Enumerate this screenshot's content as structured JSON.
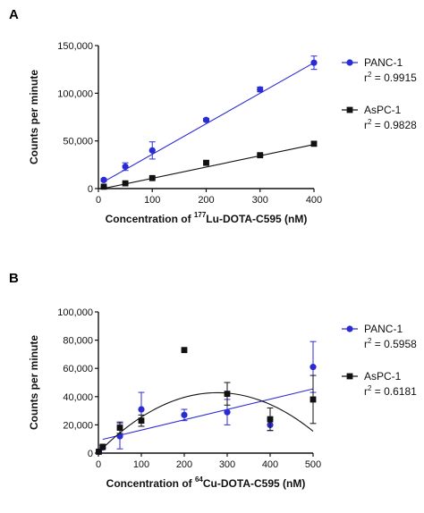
{
  "colors": {
    "panc": "#2b2bd6",
    "aspc": "#111111",
    "axis": "#111111"
  },
  "chart_data": [
    {
      "panel": "A",
      "type": "scatter",
      "xlabel": {
        "prefix": "Concentration of ",
        "sup": "177",
        "suffix": "Lu-DOTA-C595 (nM)"
      },
      "ylabel": "Counts per minute",
      "xlim": [
        0,
        400
      ],
      "ylim": [
        0,
        150000
      ],
      "xticks": [
        0,
        100,
        200,
        300,
        400
      ],
      "xtick_labels": [
        "0",
        "100",
        "200",
        "300",
        "400"
      ],
      "yticks": [
        0,
        50000,
        100000,
        150000
      ],
      "ytick_labels": [
        "0",
        "50,000",
        "100,000",
        "150,000"
      ],
      "fit": "linear",
      "series": [
        {
          "name": "PANC-1",
          "r2_label": "r",
          "r2_value": " = 0.9915",
          "color": "#2b2bd6",
          "marker": "circle",
          "x": [
            10,
            50,
            100,
            200,
            300,
            400
          ],
          "y": [
            9000,
            23000,
            40000,
            72000,
            104000,
            132000
          ],
          "err": [
            1500,
            4000,
            9000,
            1500,
            2500,
            7000
          ],
          "fit_coef": [
            4000,
            320
          ]
        },
        {
          "name": "AsPC-1",
          "r2_label": "r",
          "r2_value": " = 0.9828",
          "color": "#111111",
          "marker": "square",
          "x": [
            10,
            50,
            100,
            200,
            300,
            400
          ],
          "y": [
            2000,
            5500,
            11000,
            27000,
            35000,
            47000
          ],
          "err": [
            500,
            800,
            1000,
            1500,
            1200,
            2000
          ],
          "fit_coef": [
            -1000,
            118
          ]
        }
      ],
      "legend_position": "right"
    },
    {
      "panel": "B",
      "type": "scatter",
      "xlabel": {
        "prefix": "Concentration of ",
        "sup": "64",
        "suffix": "Cu-DOTA-C595 (nM)"
      },
      "ylabel": "Counts per minute",
      "xlim": [
        0,
        500
      ],
      "ylim": [
        0,
        100000
      ],
      "xticks": [
        0,
        100,
        200,
        300,
        400,
        500
      ],
      "xtick_labels": [
        "0",
        "100",
        "200",
        "300",
        "400",
        "500"
      ],
      "yticks": [
        0,
        20000,
        40000,
        60000,
        80000,
        100000
      ],
      "ytick_labels": [
        "0",
        "20,000",
        "40,000",
        "60,000",
        "80,000",
        "100,000"
      ],
      "series": [
        {
          "name": "PANC-1",
          "r2_label": "r",
          "r2_value": " = 0.5958",
          "color": "#2b2bd6",
          "marker": "circle",
          "fit": "linear",
          "x": [
            1,
            10,
            50,
            100,
            200,
            300,
            400,
            500
          ],
          "y": [
            1000,
            4000,
            12000,
            31000,
            27000,
            29000,
            20000,
            61000
          ],
          "err": [
            500,
            1500,
            9000,
            12000,
            4000,
            9000,
            4000,
            18000
          ],
          "fit_coef": [
            9000,
            73
          ]
        },
        {
          "name": "AsPC-1",
          "r2_label": "r",
          "r2_value": " = 0.6181",
          "color": "#111111",
          "marker": "square",
          "fit": "quadratic",
          "x": [
            1,
            10,
            50,
            100,
            200,
            300,
            400,
            500
          ],
          "y": [
            1000,
            4500,
            18000,
            23000,
            73000,
            42000,
            24000,
            38000
          ],
          "err": [
            500,
            1000,
            4000,
            4000,
            0,
            8000,
            8000,
            17000
          ],
          "fit_coef": [
            500,
            305,
            -0.55
          ]
        }
      ],
      "legend_position": "right"
    }
  ]
}
